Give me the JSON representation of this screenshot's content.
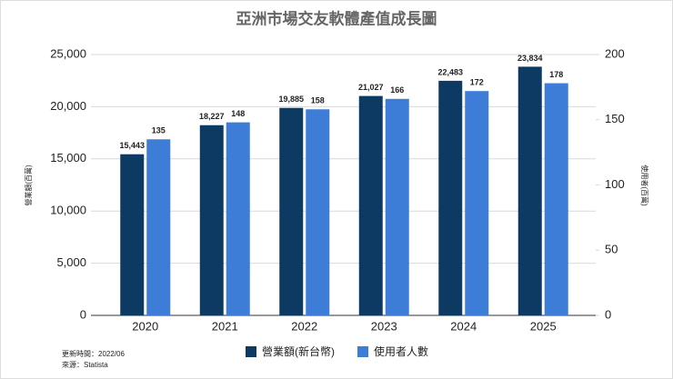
{
  "chart_data": {
    "type": "bar",
    "title": "亞洲市場交友軟體產值成長圖",
    "y_label": "營業額(百萬)",
    "y2_label": "使用者(百萬)",
    "notes": [
      "更新時間：2022/06",
      "來源：Statista"
    ],
    "categories": [
      "2020",
      "2021",
      "2022",
      "2023",
      "2024",
      "2025"
    ],
    "series": [
      {
        "name": "營業額(新台幣)",
        "color": "#0d3a63",
        "values": [
          15443,
          18227,
          19885,
          21027,
          22483,
          23834
        ],
        "value_labels": [
          "15,443",
          "18,227",
          "19,885",
          "21,027",
          "22,483",
          "23,834"
        ]
      },
      {
        "name": "使用者人數",
        "color": "#3d7dd8",
        "axis": "y2",
        "values": [
          135,
          148,
          158,
          166,
          172,
          178
        ]
      }
    ],
    "ylim": [
      0,
      25000
    ],
    "yticks": [
      0,
      {
        "value": 5000,
        "label": "5,000"
      },
      {
        "value": 10000,
        "label": "10,000"
      },
      {
        "value": 15000,
        "label": "15,000"
      },
      {
        "value": 20000,
        "label": "20,000"
      },
      {
        "value": 25000,
        "label": "25,000"
      }
    ],
    "y2lim": [
      0,
      200
    ],
    "y2ticks": [
      0,
      50,
      100,
      150,
      200
    ],
    "grid": true,
    "legend": "bottom"
  }
}
